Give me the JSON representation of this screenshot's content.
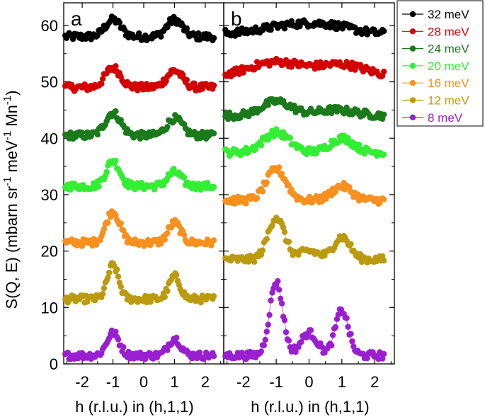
{
  "chart_data": {
    "type": "scatter",
    "xlabel": "h (r.l.u.) in (h,1,1)",
    "ylabel_main": "S(Q, E) (mbarn sr",
    "ylabel_sup1": "-1",
    "ylabel_mid": " meV",
    "ylabel_sup2": "-1",
    "ylabel_end": " Mn",
    "ylabel_sup3": "-1",
    "ylabel_close": ")",
    "xlim": [
      -2.6,
      2.6
    ],
    "ylim": [
      0,
      64
    ],
    "x_ticks": [
      -2,
      -1,
      0,
      1,
      2
    ],
    "x_tick_labels": [
      "-2",
      "-1",
      "0",
      "1",
      "2"
    ],
    "y_ticks": [
      0,
      10,
      20,
      30,
      40,
      50,
      60
    ],
    "y_tick_labels": [
      "0",
      "10",
      "20",
      "30",
      "40",
      "50",
      "60"
    ],
    "legend_position": "outside-right-top",
    "legend": [
      {
        "name": "32 meV",
        "color": "#000000"
      },
      {
        "name": "28 meV",
        "color": "#d40000"
      },
      {
        "name": "24 meV",
        "color": "#1a7a1a"
      },
      {
        "name": "20 meV",
        "color": "#33ee33"
      },
      {
        "name": "16 meV",
        "color": "#f7901e"
      },
      {
        "name": "12 meV",
        "color": "#bb9a10"
      },
      {
        "name": "8 meV",
        "color": "#9a1fd0"
      }
    ],
    "panels": [
      {
        "label": "a",
        "series": [
          {
            "name": "32 meV",
            "baseline": 58,
            "peaks": [
              [
                -1.0,
                3.0,
                0.25
              ],
              [
                1.0,
                3.0,
                0.25
              ]
            ]
          },
          {
            "name": "28 meV",
            "baseline": 49,
            "peaks": [
              [
                -1.0,
                3.5,
                0.25
              ],
              [
                1.0,
                3.0,
                0.25
              ]
            ]
          },
          {
            "name": "24 meV",
            "baseline": 40.5,
            "peaks": [
              [
                -1.0,
                4.0,
                0.25
              ],
              [
                1.0,
                3.0,
                0.25
              ]
            ]
          },
          {
            "name": "20 meV",
            "baseline": 31.5,
            "peaks": [
              [
                -1.0,
                4.5,
                0.22
              ],
              [
                1.0,
                2.5,
                0.22
              ]
            ]
          },
          {
            "name": "16 meV",
            "baseline": 21.5,
            "peaks": [
              [
                -1.0,
                5.5,
                0.22
              ],
              [
                1.0,
                3.5,
                0.2
              ]
            ]
          },
          {
            "name": "12 meV",
            "baseline": 11.5,
            "peaks": [
              [
                -1.0,
                6.0,
                0.18
              ],
              [
                1.0,
                4.0,
                0.18
              ]
            ]
          },
          {
            "name": "8 meV",
            "baseline": 1.5,
            "peaks": [
              [
                -1.0,
                4.0,
                0.2
              ],
              [
                1.0,
                3.0,
                0.2
              ]
            ]
          }
        ]
      },
      {
        "label": "b",
        "series": [
          {
            "name": "32 meV",
            "baseline": 58.5,
            "peaks": [
              [
                -0.5,
                1.5,
                0.9
              ],
              [
                0.7,
                1.0,
                0.7
              ]
            ]
          },
          {
            "name": "28 meV",
            "baseline": 51,
            "peaks": [
              [
                -1.0,
                2.5,
                0.8
              ],
              [
                1.0,
                2.0,
                0.7
              ]
            ]
          },
          {
            "name": "24 meV",
            "baseline": 44,
            "peaks": [
              [
                -1.0,
                2.5,
                0.45
              ],
              [
                0.8,
                1.0,
                0.6
              ]
            ]
          },
          {
            "name": "20 meV",
            "baseline": 37.5,
            "peaks": [
              [
                -1.0,
                3.5,
                0.4
              ],
              [
                1.0,
                2.5,
                0.35
              ]
            ]
          },
          {
            "name": "16 meV",
            "baseline": 29,
            "peaks": [
              [
                -1.0,
                5.5,
                0.3
              ],
              [
                1.0,
                2.5,
                0.3
              ]
            ]
          },
          {
            "name": "12 meV",
            "baseline": 18.5,
            "peaks": [
              [
                -1.0,
                7.5,
                0.25
              ],
              [
                0.0,
                1.5,
                0.3
              ],
              [
                1.0,
                4.0,
                0.25
              ]
            ]
          },
          {
            "name": "8 meV",
            "baseline": 1.5,
            "peaks": [
              [
                -1.0,
                13.0,
                0.2
              ],
              [
                0.0,
                4.0,
                0.25
              ],
              [
                1.0,
                8.0,
                0.2
              ]
            ]
          }
        ]
      }
    ]
  }
}
